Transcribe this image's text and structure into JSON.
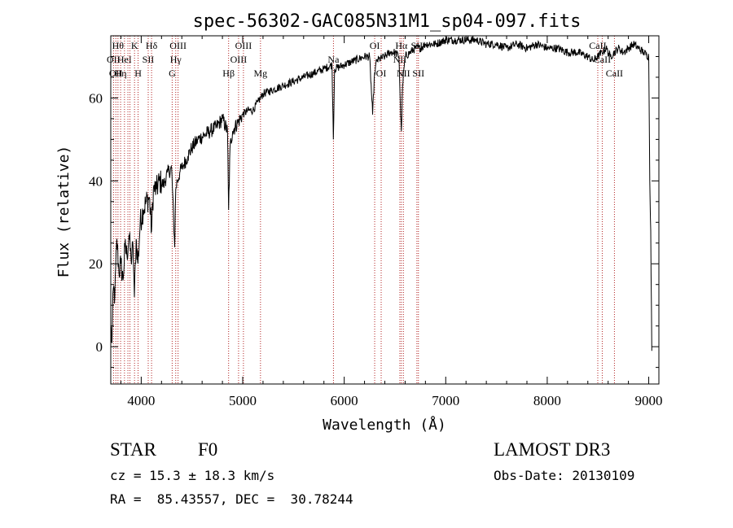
{
  "chart_data": {
    "type": "line",
    "title": "spec-56302-GAC085N31M1_sp04-097.fits",
    "xlabel": "Wavelength (Å)",
    "ylabel": "Flux (relative)",
    "xlim": [
      3700,
      9100
    ],
    "ylim": [
      -9,
      75
    ],
    "x_ticks": [
      4000,
      5000,
      6000,
      7000,
      8000,
      9000
    ],
    "x_tick_labels": [
      "4000",
      "5000",
      "6000",
      "7000",
      "8000",
      "9000"
    ],
    "y_ticks": [
      0,
      20,
      40,
      60
    ],
    "y_tick_labels": [
      "0",
      "20",
      "40",
      "60"
    ],
    "grid": false,
    "series": [
      {
        "name": "spectrum",
        "x": [
          3700,
          3712,
          3725,
          3740,
          3760,
          3780,
          3800,
          3820,
          3840,
          3860,
          3880,
          3900,
          3920,
          3933,
          3950,
          3968,
          3990,
          4020,
          4050,
          4080,
          4102,
          4120,
          4150,
          4180,
          4220,
          4260,
          4300,
          4330,
          4340,
          4355,
          4380,
          4420,
          4460,
          4500,
          4560,
          4620,
          4680,
          4740,
          4800,
          4850,
          4861,
          4875,
          4900,
          4950,
          5000,
          5050,
          5100,
          5150,
          5200,
          5300,
          5400,
          5500,
          5600,
          5700,
          5800,
          5880,
          5893,
          5905,
          6000,
          6100,
          6200,
          6250,
          6280,
          6300,
          6320,
          6400,
          6450,
          6500,
          6540,
          6555,
          6563,
          6575,
          6600,
          6650,
          6700,
          6750,
          6800,
          6900,
          7000,
          7100,
          7200,
          7300,
          7400,
          7500,
          7600,
          7700,
          7800,
          7900,
          8000,
          8100,
          8200,
          8300,
          8400,
          8450,
          8500,
          8540,
          8580,
          8620,
          8662,
          8700,
          8750,
          8800,
          8850,
          8900,
          8950,
          9000,
          9010,
          9020,
          9030
        ],
        "values": [
          5,
          1,
          14,
          12,
          26,
          18,
          20,
          16,
          24,
          22,
          27,
          21,
          24,
          12,
          26,
          20,
          30,
          33,
          35,
          36,
          28,
          38,
          38,
          40,
          39,
          42,
          43,
          24,
          38,
          40,
          42,
          44,
          46,
          48,
          50,
          51,
          52,
          53,
          55,
          52,
          33,
          48,
          52,
          54,
          56,
          57,
          57,
          59,
          61,
          62,
          63,
          64,
          65,
          66,
          67,
          68,
          50,
          67,
          68,
          69,
          70,
          70,
          56,
          66,
          69,
          70,
          71,
          71,
          70,
          56,
          52,
          63,
          70,
          71,
          72,
          72,
          73,
          73,
          74,
          74,
          74,
          74,
          73,
          73,
          72,
          73,
          72,
          73,
          72,
          72,
          71,
          71,
          70,
          69,
          70,
          71,
          72,
          70,
          71,
          72,
          71,
          72,
          73,
          72,
          71,
          70,
          40,
          28,
          -1
        ]
      }
    ],
    "line_markers": [
      {
        "x": 3727,
        "label": "OII",
        "row": 2
      },
      {
        "x": 3750,
        "label": "OII",
        "row": 3
      },
      {
        "x": 3771,
        "label": "Hθ",
        "row": 1
      },
      {
        "x": 3797,
        "label": "Hη",
        "row": 3
      },
      {
        "x": 3835,
        "label": "HeI",
        "row": 2
      },
      {
        "x": 3869,
        "label": "",
        "row": 0
      },
      {
        "x": 3889,
        "label": "",
        "row": 0
      },
      {
        "x": 3934,
        "label": "K",
        "row": 1
      },
      {
        "x": 3969,
        "label": "H",
        "row": 3
      },
      {
        "x": 4069,
        "label": "SII",
        "row": 2
      },
      {
        "x": 4102,
        "label": "Hδ",
        "row": 1
      },
      {
        "x": 4305,
        "label": "G",
        "row": 3
      },
      {
        "x": 4340,
        "label": "Hγ",
        "row": 2
      },
      {
        "x": 4363,
        "label": "OIII",
        "row": 1
      },
      {
        "x": 4861,
        "label": "Hβ",
        "row": 3
      },
      {
        "x": 4959,
        "label": "OIII",
        "row": 2
      },
      {
        "x": 5007,
        "label": "OIII",
        "row": 1
      },
      {
        "x": 5175,
        "label": "Mg",
        "row": 3
      },
      {
        "x": 5894,
        "label": "Na",
        "row": 2
      },
      {
        "x": 6300,
        "label": "OI",
        "row": 1
      },
      {
        "x": 6364,
        "label": "OI",
        "row": 3
      },
      {
        "x": 6548,
        "label": "NII",
        "row": 2
      },
      {
        "x": 6563,
        "label": "Hα",
        "row": 1
      },
      {
        "x": 6583,
        "label": "NII",
        "row": 3
      },
      {
        "x": 6716,
        "label": "SII",
        "row": 1
      },
      {
        "x": 6731,
        "label": "SII",
        "row": 3
      },
      {
        "x": 8498,
        "label": "CaII",
        "row": 1
      },
      {
        "x": 8542,
        "label": "CaII",
        "row": 2
      },
      {
        "x": 8662,
        "label": "CaII",
        "row": 3
      }
    ]
  },
  "footer": {
    "object_class": "STAR",
    "subclass": "F0",
    "survey": "LAMOST DR3",
    "cz": "cz = 15.3 ± 18.3 km/s",
    "obs_date": "Obs-Date: 20130109",
    "coords": "RA =  85.43557, DEC =  30.78244"
  }
}
